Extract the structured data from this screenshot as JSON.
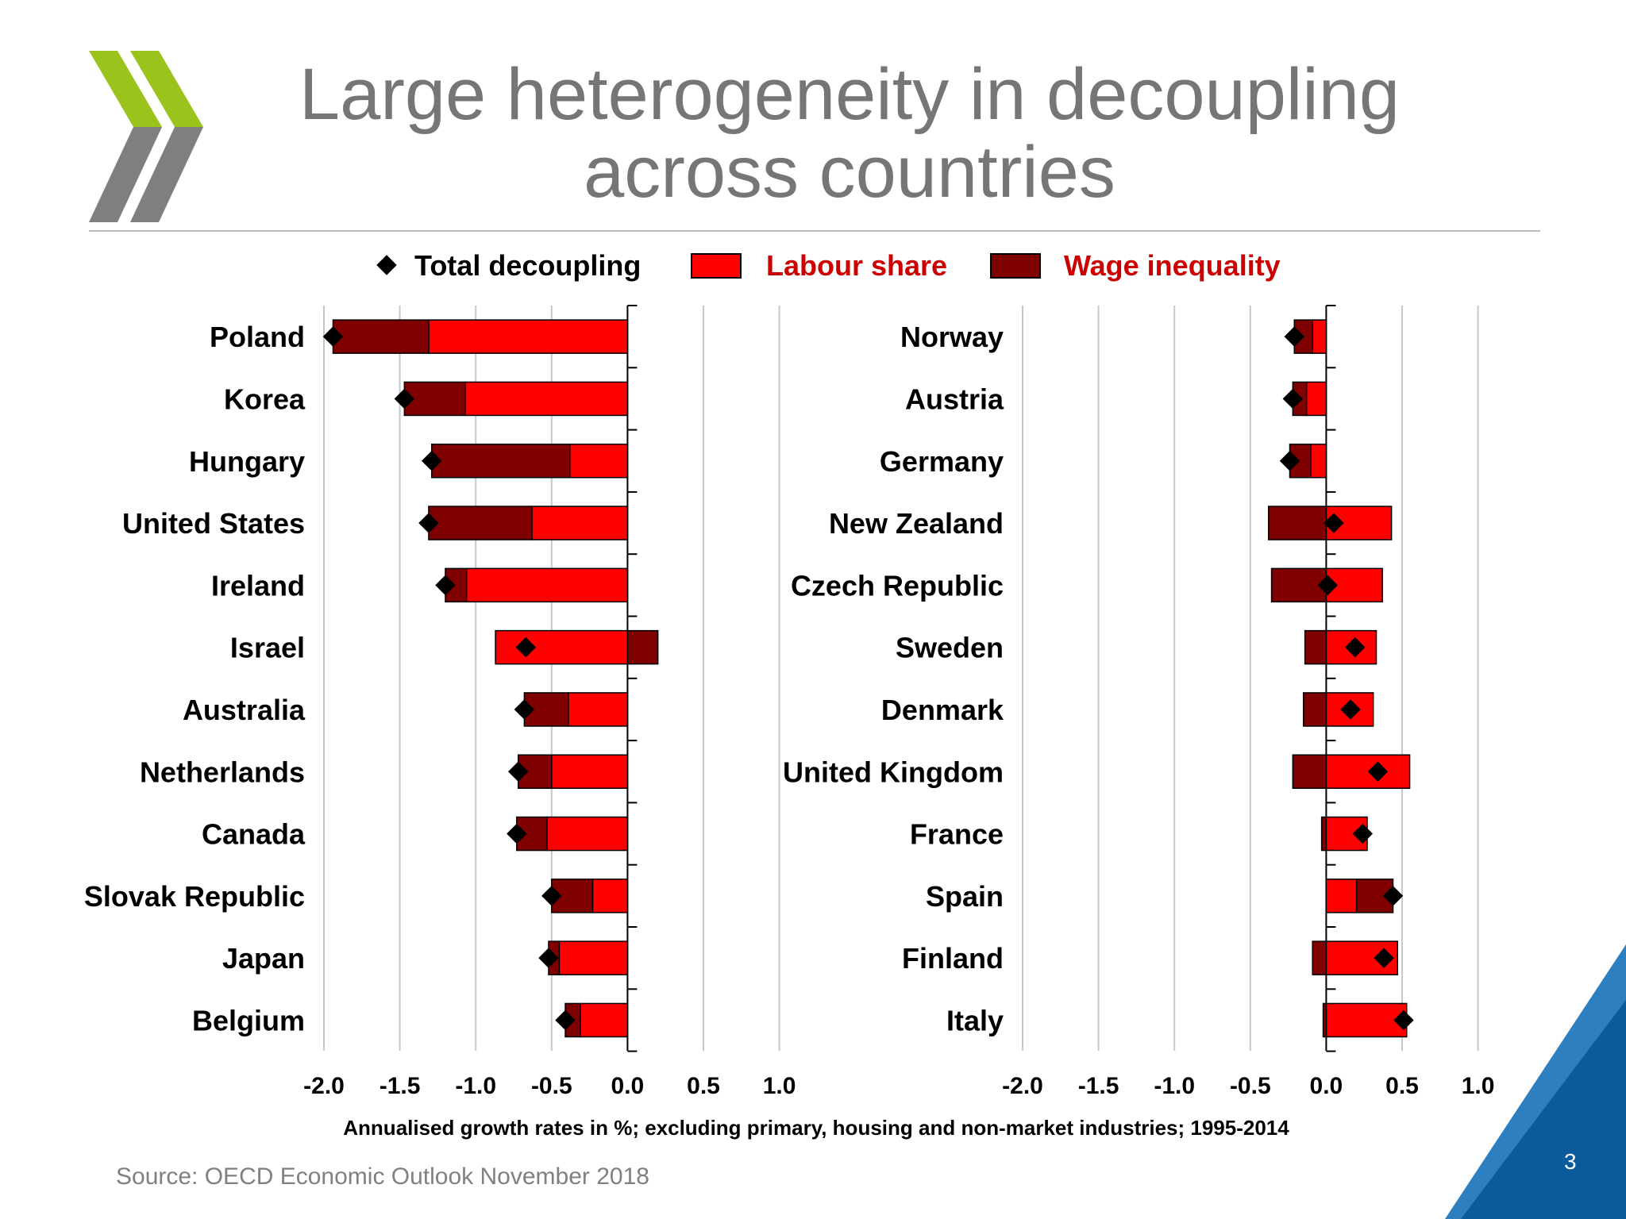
{
  "slide": {
    "title_line1": "Large heterogeneity in decoupling",
    "title_line2": "across countries",
    "source": "Source: OECD Economic Outlook November 2018",
    "page_number": "3"
  },
  "colors": {
    "labour_share": "#ff0000",
    "wage_inequality": "#7f0000",
    "marker": "#000000",
    "logo_green": "#9ac31c",
    "logo_grey": "#7f7f7f",
    "corner_blue": "#0b5a9c",
    "corner_light_blue": "#2e7fc0"
  },
  "chart_data": {
    "type": "bar",
    "orientation": "horizontal",
    "stacked": true,
    "title": "",
    "xlabel": "Annualised growth rates in %; excluding primary, housing and non-market industries; 1995-2014",
    "ylabel": "",
    "xlim": [
      -2.0,
      1.0
    ],
    "xticks": [
      "-2.0",
      "-1.5",
      "-1.0",
      "-0.5",
      "0.0",
      "0.5",
      "1.0"
    ],
    "grid": "vertical",
    "legend": {
      "position": "top",
      "entries": [
        "Total decoupling",
        "Labour share",
        "Wage inequality"
      ]
    },
    "panels": [
      {
        "categories": [
          "Poland",
          "Korea",
          "Hungary",
          "United States",
          "Ireland",
          "Israel",
          "Australia",
          "Netherlands",
          "Canada",
          "Slovak Republic",
          "Japan",
          "Belgium"
        ],
        "series": [
          {
            "name": "Labour share",
            "type": "bar",
            "values": [
              -1.31,
              -1.07,
              -0.38,
              -0.63,
              -1.06,
              -0.87,
              -0.39,
              -0.5,
              -0.53,
              -0.23,
              -0.45,
              -0.31
            ]
          },
          {
            "name": "Wage inequality",
            "type": "bar",
            "values": [
              -0.63,
              -0.4,
              -0.91,
              -0.68,
              -0.14,
              0.2,
              -0.29,
              -0.22,
              -0.2,
              -0.27,
              -0.07,
              -0.1
            ]
          },
          {
            "name": "Total decoupling",
            "type": "marker",
            "values": [
              -1.94,
              -1.47,
              -1.29,
              -1.31,
              -1.2,
              -0.67,
              -0.68,
              -0.72,
              -0.73,
              -0.5,
              -0.52,
              -0.41
            ]
          }
        ]
      },
      {
        "categories": [
          "Norway",
          "Austria",
          "Germany",
          "New Zealand",
          "Czech Republic",
          "Sweden",
          "Denmark",
          "United Kingdom",
          "France",
          "Spain",
          "Finland",
          "Italy"
        ],
        "series": [
          {
            "name": "Labour share",
            "type": "bar",
            "values": [
              -0.09,
              -0.13,
              -0.1,
              0.43,
              0.37,
              0.33,
              0.31,
              0.55,
              0.27,
              0.2,
              0.47,
              0.53
            ]
          },
          {
            "name": "Wage inequality",
            "type": "bar",
            "values": [
              -0.12,
              -0.09,
              -0.14,
              -0.38,
              -0.36,
              -0.14,
              -0.15,
              -0.22,
              -0.03,
              0.24,
              -0.09,
              -0.02
            ]
          },
          {
            "name": "Total decoupling",
            "type": "marker",
            "values": [
              -0.21,
              -0.22,
              -0.24,
              0.05,
              0.01,
              0.19,
              0.16,
              0.34,
              0.24,
              0.44,
              0.38,
              0.51
            ]
          }
        ]
      }
    ]
  }
}
